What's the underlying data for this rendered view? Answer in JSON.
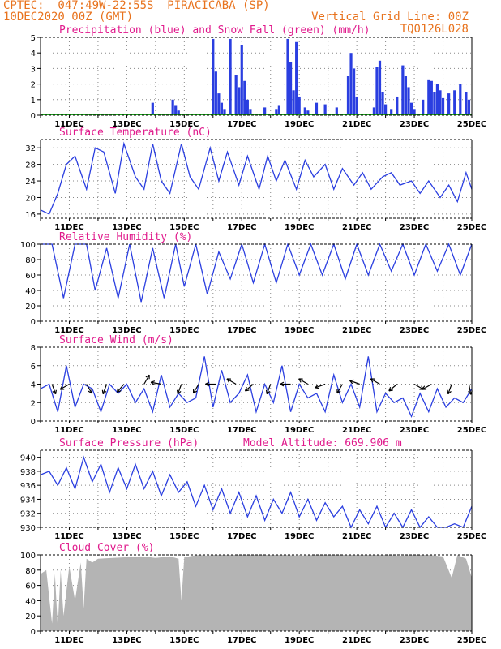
{
  "header": {
    "left_line1": "CPTEC:  047:49W-22:55S  PIRACICABA (SP)",
    "left_line2": "10DEC2020 00Z (GMT)",
    "right_line1": "Vertical Grid Line: 00Z",
    "right_line2": "TQ0126L028"
  },
  "colors": {
    "header": "#e8731e",
    "title": "#e01a8c",
    "line": "#2a3ee0",
    "snow": "#1aa01a",
    "cloud": "#b4b4b4"
  },
  "x_axis": {
    "tick_labels": [
      "11DEC",
      "13DEC",
      "15DEC",
      "17DEC",
      "19DEC",
      "21DEC",
      "23DEC",
      "25DEC"
    ],
    "tick_days": [
      11,
      13,
      15,
      17,
      19,
      21,
      23,
      25
    ],
    "range_days": [
      10,
      25
    ]
  },
  "chart_data": [
    {
      "id": "precip",
      "type": "bar",
      "title": "Precipitation (blue) and Snow Fall (green) (mm/h)",
      "ylim": [
        0,
        5
      ],
      "yticks": [
        0,
        1,
        2,
        3,
        4,
        5
      ],
      "series": [
        {
          "name": "Precipitation (blue)",
          "x": [
            13.9,
            14.6,
            14.7,
            14.8,
            16.0,
            16.1,
            16.2,
            16.3,
            16.4,
            16.6,
            16.8,
            16.9,
            17.0,
            17.1,
            17.2,
            17.3,
            17.8,
            18.2,
            18.3,
            18.6,
            18.7,
            18.8,
            18.9,
            19.0,
            19.2,
            19.3,
            19.6,
            19.9,
            20.3,
            20.7,
            20.8,
            20.9,
            21.0,
            21.6,
            21.7,
            21.8,
            21.9,
            22.0,
            22.2,
            22.4,
            22.6,
            22.7,
            22.8,
            22.9,
            23.0,
            23.3,
            23.5,
            23.6,
            23.7,
            23.8,
            23.9,
            24.0,
            24.2,
            24.4,
            24.6,
            24.8,
            24.9
          ],
          "y": [
            0.8,
            1.0,
            0.6,
            0.3,
            4.9,
            2.8,
            1.4,
            0.8,
            0.4,
            4.9,
            2.6,
            1.8,
            4.5,
            2.2,
            1.0,
            0.4,
            0.5,
            0.4,
            0.6,
            4.9,
            3.4,
            1.6,
            4.7,
            1.2,
            0.5,
            0.3,
            0.8,
            0.7,
            0.5,
            2.5,
            4.0,
            3.0,
            1.2,
            0.5,
            3.1,
            3.5,
            1.5,
            0.7,
            0.4,
            1.2,
            3.2,
            2.5,
            1.8,
            0.8,
            0.4,
            1.0,
            2.3,
            2.2,
            1.5,
            2.0,
            1.6,
            1.1,
            1.4,
            1.6,
            2.0,
            1.5,
            1.0
          ]
        },
        {
          "name": "Snow Fall (green)",
          "x": [],
          "y": []
        }
      ]
    },
    {
      "id": "temp",
      "type": "line",
      "title": "Surface Temperature (nC)",
      "ylim": [
        15,
        34
      ],
      "yticks": [
        16,
        20,
        24,
        28,
        32
      ],
      "series": [
        {
          "name": "Temperature",
          "x": [
            10.0,
            10.3,
            10.6,
            10.9,
            11.2,
            11.6,
            11.9,
            12.2,
            12.6,
            12.9,
            13.3,
            13.6,
            13.9,
            14.2,
            14.5,
            14.9,
            15.2,
            15.5,
            15.9,
            16.2,
            16.5,
            16.9,
            17.2,
            17.6,
            17.9,
            18.2,
            18.5,
            18.9,
            19.2,
            19.5,
            19.9,
            20.2,
            20.5,
            20.9,
            21.2,
            21.5,
            21.9,
            22.2,
            22.5,
            22.9,
            23.2,
            23.5,
            23.9,
            24.2,
            24.5,
            24.8,
            25.0
          ],
          "y": [
            17.0,
            16.0,
            21.0,
            28.0,
            30.0,
            22.0,
            32.0,
            31.0,
            21.0,
            33.0,
            25.0,
            22.0,
            33.0,
            24.0,
            21.0,
            33.0,
            25.0,
            22.0,
            32.0,
            24.0,
            31.0,
            23.0,
            30.0,
            22.0,
            30.0,
            24.0,
            29.0,
            22.0,
            29.0,
            25.0,
            28.0,
            22.0,
            27.0,
            23.0,
            26.0,
            22.0,
            25.0,
            26.0,
            23.0,
            24.0,
            21.0,
            24.0,
            20.0,
            23.0,
            19.0,
            26.0,
            22.0
          ]
        }
      ]
    },
    {
      "id": "rh",
      "type": "line",
      "title": "Relative Humidity (%)",
      "ylim": [
        0,
        100
      ],
      "yticks": [
        0,
        20,
        40,
        60,
        80,
        100
      ],
      "series": [
        {
          "name": "Relative Humidity",
          "x": [
            10.0,
            10.4,
            10.8,
            11.2,
            11.6,
            11.9,
            12.3,
            12.7,
            13.1,
            13.5,
            13.9,
            14.3,
            14.7,
            15.0,
            15.4,
            15.8,
            16.2,
            16.6,
            17.0,
            17.4,
            17.8,
            18.2,
            18.6,
            19.0,
            19.4,
            19.8,
            20.2,
            20.6,
            21.0,
            21.4,
            21.8,
            22.2,
            22.6,
            23.0,
            23.4,
            23.8,
            24.2,
            24.6,
            25.0
          ],
          "y": [
            100,
            100,
            30,
            100,
            100,
            40,
            95,
            30,
            100,
            25,
            95,
            30,
            100,
            45,
            100,
            35,
            90,
            55,
            100,
            50,
            100,
            50,
            100,
            60,
            100,
            60,
            100,
            55,
            100,
            60,
            100,
            65,
            100,
            60,
            100,
            65,
            100,
            60,
            100
          ]
        }
      ]
    },
    {
      "id": "wind",
      "type": "line",
      "title": "Surface Wind (m/s)",
      "ylim": [
        0,
        8
      ],
      "yticks": [
        0,
        2,
        4,
        6,
        8
      ],
      "series": [
        {
          "name": "Wind speed",
          "x": [
            10.0,
            10.3,
            10.6,
            10.9,
            11.2,
            11.5,
            11.8,
            12.1,
            12.4,
            12.7,
            13.0,
            13.3,
            13.6,
            13.9,
            14.2,
            14.5,
            14.8,
            15.1,
            15.4,
            15.7,
            16.0,
            16.3,
            16.6,
            16.9,
            17.2,
            17.5,
            17.8,
            18.1,
            18.4,
            18.7,
            19.0,
            19.3,
            19.6,
            19.9,
            20.2,
            20.5,
            20.8,
            21.1,
            21.4,
            21.7,
            22.0,
            22.3,
            22.6,
            22.9,
            23.2,
            23.5,
            23.8,
            24.1,
            24.4,
            24.7,
            25.0
          ],
          "y": [
            3.5,
            4.0,
            1.0,
            6.0,
            1.5,
            4.0,
            3.5,
            1.0,
            4.0,
            3.0,
            4.0,
            2.0,
            3.5,
            1.0,
            5.0,
            1.5,
            3.0,
            2.0,
            2.5,
            7.0,
            1.5,
            5.5,
            2.0,
            3.0,
            5.0,
            1.0,
            4.0,
            2.0,
            6.0,
            1.0,
            4.0,
            2.5,
            3.0,
            1.0,
            5.0,
            2.0,
            4.0,
            1.5,
            7.0,
            1.0,
            3.0,
            2.0,
            2.5,
            0.5,
            3.0,
            1.0,
            3.5,
            1.5,
            2.5,
            2.0,
            3.5
          ]
        }
      ],
      "vectors": {
        "x": [
          10.4,
          11.0,
          11.6,
          12.3,
          12.9,
          13.6,
          14.2,
          14.9,
          15.5,
          16.1,
          16.8,
          17.4,
          18.0,
          18.7,
          19.3,
          19.9,
          20.5,
          21.1,
          21.8,
          22.4,
          23.0,
          23.6,
          24.3,
          24.9
        ],
        "angle_deg": [
          160,
          240,
          150,
          200,
          220,
          30,
          280,
          200,
          210,
          270,
          300,
          230,
          200,
          270,
          300,
          250,
          210,
          290,
          300,
          230,
          120,
          240,
          200,
          170
        ]
      }
    },
    {
      "id": "pressure",
      "type": "line",
      "title": "Surface Pressure (hPa)",
      "annotation": "Model Altitude: 669.906 m",
      "ylim": [
        930,
        941
      ],
      "yticks": [
        930,
        932,
        934,
        936,
        938,
        940
      ],
      "series": [
        {
          "name": "Pressure",
          "x": [
            10.0,
            10.3,
            10.6,
            10.9,
            11.2,
            11.5,
            11.8,
            12.1,
            12.4,
            12.7,
            13.0,
            13.3,
            13.6,
            13.9,
            14.2,
            14.5,
            14.8,
            15.1,
            15.4,
            15.7,
            16.0,
            16.3,
            16.6,
            16.9,
            17.2,
            17.5,
            17.8,
            18.1,
            18.4,
            18.7,
            19.0,
            19.3,
            19.6,
            19.9,
            20.2,
            20.5,
            20.8,
            21.1,
            21.4,
            21.7,
            22.0,
            22.3,
            22.6,
            22.9,
            23.2,
            23.5,
            23.8,
            24.1,
            24.4,
            24.7,
            25.0
          ],
          "y": [
            937.5,
            938.0,
            936.0,
            938.5,
            935.5,
            940.0,
            936.5,
            939.0,
            935.0,
            938.5,
            935.5,
            939.0,
            935.5,
            938.0,
            934.5,
            937.5,
            935.0,
            936.5,
            933.0,
            936.0,
            932.5,
            935.5,
            932.0,
            935.0,
            931.5,
            934.5,
            931.0,
            934.0,
            932.0,
            935.0,
            931.5,
            934.0,
            931.0,
            933.5,
            931.5,
            933.0,
            930.0,
            932.5,
            930.5,
            933.0,
            930.0,
            932.0,
            930.0,
            932.5,
            930.0,
            931.5,
            930.0,
            930.0,
            930.5,
            930.0,
            933.0
          ]
        }
      ]
    },
    {
      "id": "cloud",
      "type": "area",
      "title": "Cloud Cover (%)",
      "ylim": [
        0,
        100
      ],
      "yticks": [
        0,
        20,
        40,
        60,
        80,
        100
      ],
      "series": [
        {
          "name": "Cloud Cover",
          "x": [
            10.0,
            10.2,
            10.4,
            10.5,
            10.6,
            10.7,
            10.8,
            11.0,
            11.2,
            11.4,
            11.5,
            11.6,
            11.8,
            12.0,
            12.5,
            13.0,
            13.5,
            13.8,
            14.0,
            14.5,
            14.8,
            14.9,
            15.0,
            15.3,
            15.5,
            15.8,
            16.0,
            16.5,
            17.0,
            17.5,
            18.0,
            18.5,
            19.0,
            19.5,
            20.0,
            20.5,
            21.0,
            21.5,
            22.0,
            22.5,
            23.0,
            23.5,
            24.0,
            24.3,
            24.5,
            24.8,
            25.0
          ],
          "y": [
            75,
            80,
            10,
            75,
            5,
            80,
            20,
            85,
            40,
            90,
            30,
            95,
            90,
            95,
            96,
            97,
            98,
            97,
            96,
            98,
            95,
            40,
            97,
            99,
            100,
            99,
            100,
            100,
            100,
            100,
            100,
            100,
            99,
            100,
            100,
            100,
            100,
            100,
            100,
            99,
            100,
            100,
            98,
            70,
            100,
            95,
            70
          ]
        }
      ]
    }
  ]
}
